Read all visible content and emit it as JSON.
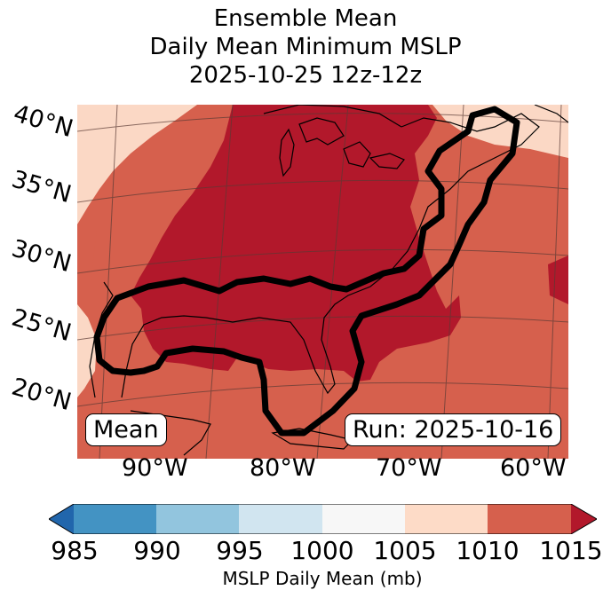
{
  "title": {
    "line1": "Ensemble Mean",
    "line2": "Daily Mean Minimum MSLP",
    "line3": "2025-10-25 12z-12z"
  },
  "map": {
    "lat_labels": [
      "40°N",
      "35°N",
      "30°N",
      "25°N",
      "20°N"
    ],
    "lon_labels": [
      "90°W",
      "80°W",
      "70°W",
      "60°W"
    ],
    "annotation_left": "Mean",
    "annotation_right": "Run: 2025-10-16",
    "field_colors": {
      "c1005_1010": "#fbd8c5",
      "c1010_1015": "#d6604d",
      "c_above_1015": "#b2182b",
      "contour": "#000000"
    }
  },
  "colorbar": {
    "ticks": [
      "985",
      "990",
      "995",
      "1000",
      "1005",
      "1010",
      "1015"
    ],
    "colors": [
      "#2166ac",
      "#4393c3",
      "#92c5de",
      "#d1e5f0",
      "#f7f7f7",
      "#fddbc7",
      "#d6604d",
      "#b2182b"
    ],
    "label": "MSLP Daily Mean (mb)"
  }
}
